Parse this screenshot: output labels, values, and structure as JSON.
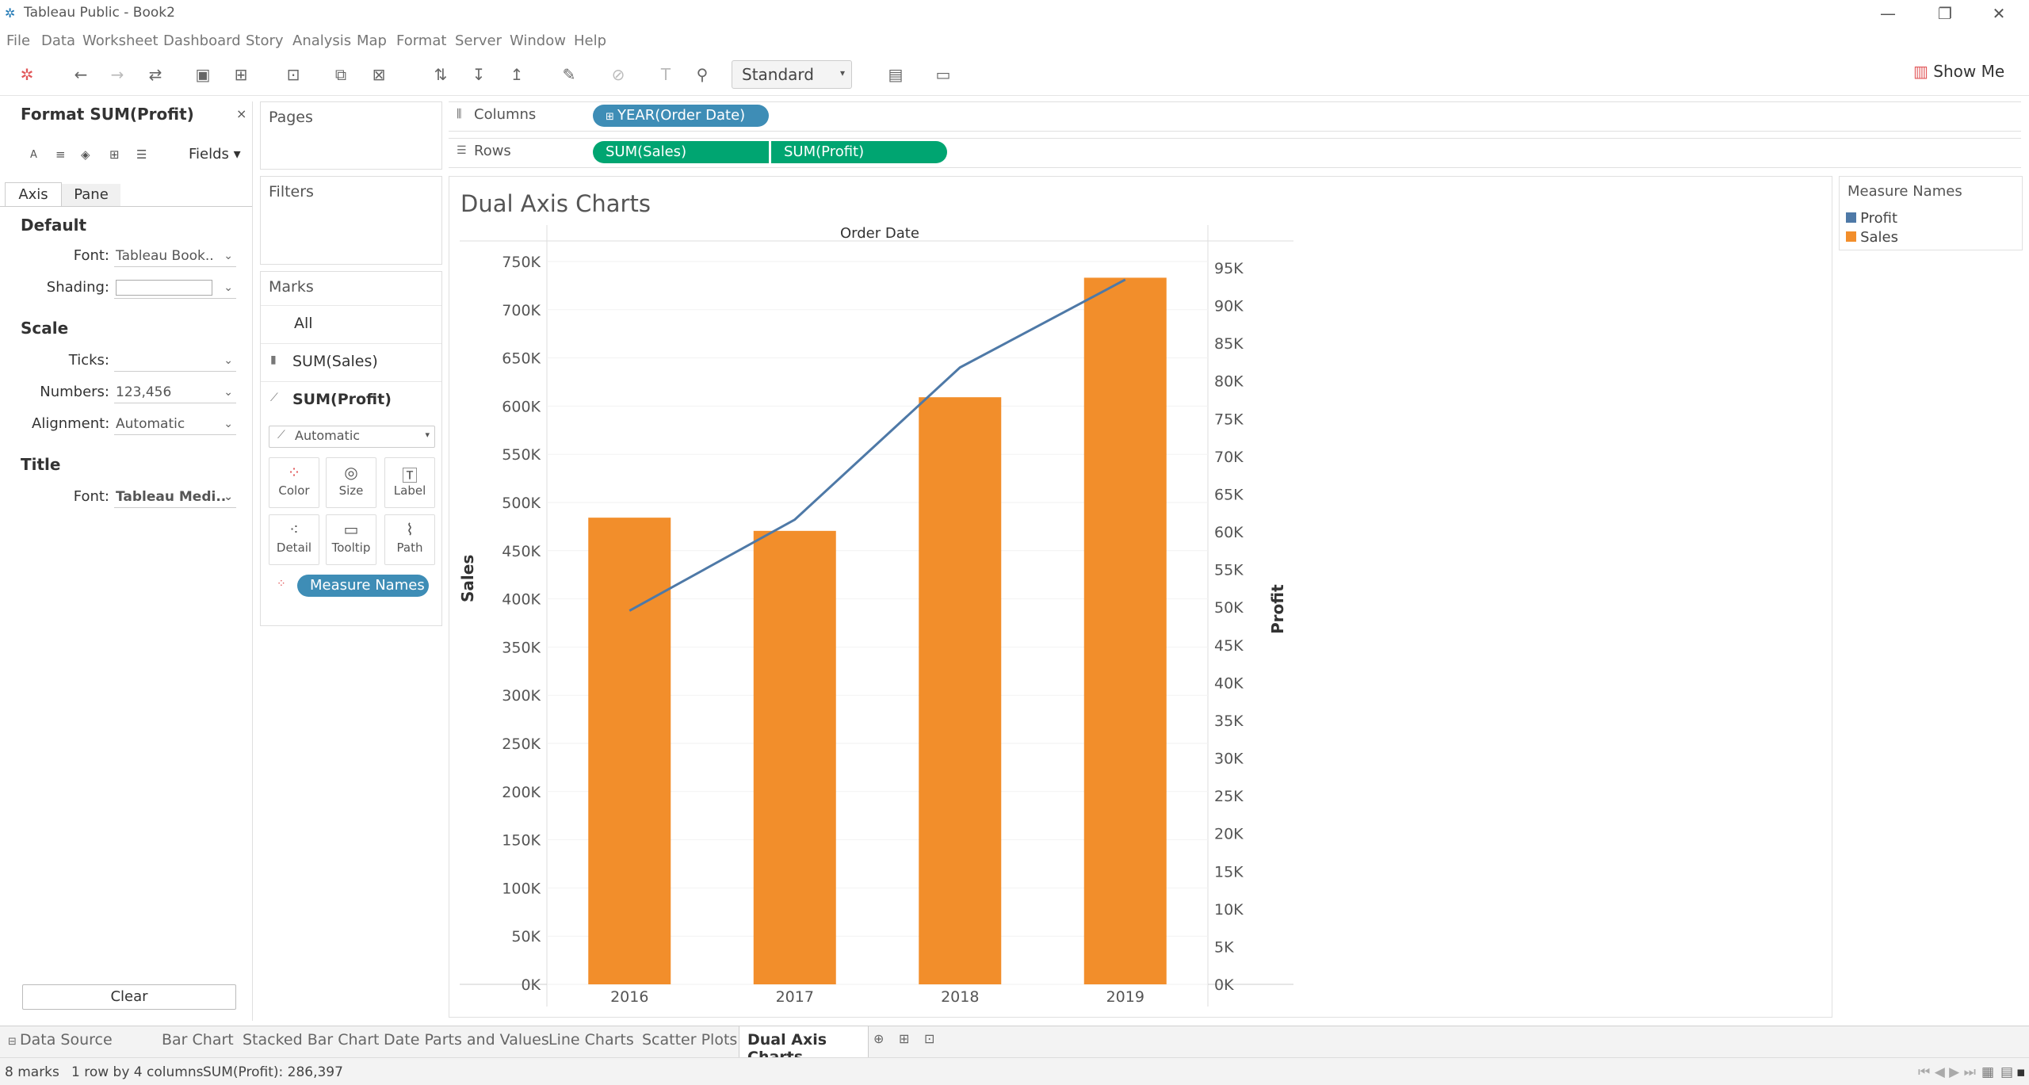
{
  "window": {
    "title": "Tableau Public - Book2"
  },
  "menu": [
    "File",
    "Data",
    "Worksheet",
    "Dashboard",
    "Story",
    "Analysis",
    "Map",
    "Format",
    "Server",
    "Window",
    "Help"
  ],
  "toolbar": {
    "view_select": "Standard",
    "show_me": "Show Me"
  },
  "format_panel": {
    "title": "Format SUM(Profit)",
    "fields_label": "Fields",
    "tabs": [
      "Axis",
      "Pane"
    ],
    "sections": {
      "default": {
        "heading": "Default",
        "font_label": "Font:",
        "font_value": "Tableau Book..",
        "shading_label": "Shading:"
      },
      "scale": {
        "heading": "Scale",
        "ticks_label": "Ticks:",
        "numbers_label": "Numbers:",
        "numbers_value": "123,456",
        "alignment_label": "Alignment:",
        "alignment_value": "Automatic"
      },
      "title": {
        "heading": "Title",
        "font_label": "Font:",
        "font_value": "Tableau Medi.."
      }
    },
    "clear_button": "Clear"
  },
  "cards": {
    "pages": "Pages",
    "filters": "Filters",
    "marks": {
      "title": "Marks",
      "rows": [
        "All",
        "SUM(Sales)",
        "SUM(Profit)"
      ],
      "mark_type": "Automatic",
      "buttons": [
        "Color",
        "Size",
        "Label",
        "Detail",
        "Tooltip",
        "Path"
      ],
      "pill": "Measure Names"
    }
  },
  "shelves": {
    "columns_label": "Columns",
    "columns_pill": "YEAR(Order Date)",
    "rows_label": "Rows",
    "rows_pills": [
      "SUM(Sales)",
      "SUM(Profit)"
    ]
  },
  "legend": {
    "title": "Measure Names",
    "items": [
      {
        "name": "Profit",
        "color": "#4e79a7"
      },
      {
        "name": "Sales",
        "color": "#f28e2b"
      }
    ]
  },
  "chart_data": {
    "type": "bar",
    "title": "Dual Axis Charts",
    "header": "Order Date",
    "categories": [
      "2016",
      "2017",
      "2018",
      "2019"
    ],
    "series": [
      {
        "name": "Sales",
        "type": "bar",
        "axis": "left",
        "color": "#f28e2b",
        "values": [
          484247,
          470533,
          609206,
          733215
        ]
      },
      {
        "name": "Profit",
        "type": "line",
        "axis": "right",
        "color": "#4e79a7",
        "values": [
          49544,
          61619,
          81795,
          93440
        ]
      }
    ],
    "ylabel": "Sales",
    "ylabel_right": "Profit",
    "ylim": [
      0,
      750000
    ],
    "ylim_right": [
      0,
      95000
    ],
    "y_ticks": [
      "0K",
      "50K",
      "100K",
      "150K",
      "200K",
      "250K",
      "300K",
      "350K",
      "400K",
      "450K",
      "500K",
      "550K",
      "600K",
      "650K",
      "700K",
      "750K"
    ],
    "y_ticks_right": [
      "0K",
      "5K",
      "10K",
      "15K",
      "20K",
      "25K",
      "30K",
      "35K",
      "40K",
      "45K",
      "50K",
      "55K",
      "60K",
      "65K",
      "70K",
      "75K",
      "80K",
      "85K",
      "90K",
      "95K"
    ]
  },
  "tabs": {
    "data_source": "Data Source",
    "sheets": [
      "Bar Chart",
      "Stacked Bar Chart",
      "Date Parts and Values",
      "Line Charts",
      "Scatter Plots",
      "Dual Axis Charts"
    ],
    "active": "Dual Axis Charts"
  },
  "status": {
    "marks": "8 marks",
    "dims": "1 row by 4 columns",
    "sum": "SUM(Profit): 286,397"
  }
}
